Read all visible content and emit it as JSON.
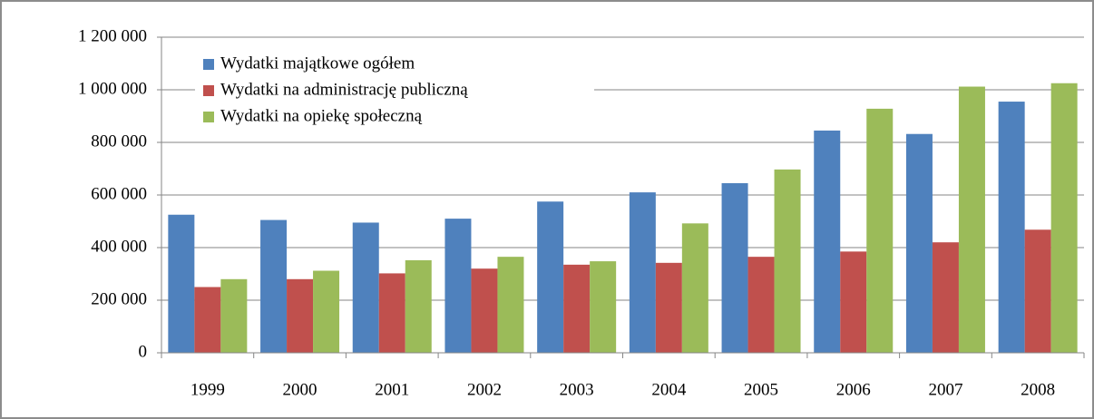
{
  "chart_data": {
    "type": "bar",
    "categories": [
      "1999",
      "2000",
      "2001",
      "2002",
      "2003",
      "2004",
      "2005",
      "2006",
      "2007",
      "2008"
    ],
    "series": [
      {
        "name": "Wydatki majątkowe ogółem",
        "color": "#4f81bd",
        "values": [
          525000,
          505000,
          495000,
          510000,
          575000,
          610000,
          645000,
          845000,
          832000,
          955000
        ]
      },
      {
        "name": "Wydatki na administrację publiczną",
        "color": "#c0504d",
        "values": [
          250000,
          280000,
          302000,
          320000,
          335000,
          342000,
          365000,
          385000,
          420000,
          468000
        ]
      },
      {
        "name": "Wydatki na opiekę społeczną",
        "color": "#9bbb59",
        "values": [
          280000,
          312000,
          352000,
          365000,
          348000,
          492000,
          697000,
          928000,
          1012000,
          1025000
        ]
      }
    ],
    "ylim": [
      0,
      1200000
    ],
    "yticks": [
      0,
      {
        "value": 200000,
        "label": "200 000"
      },
      {
        "value": 400000,
        "label": "400 000"
      },
      {
        "value": 600000,
        "label": "600 000"
      },
      {
        "value": 800000,
        "label": "800 000"
      },
      {
        "value": 1000000,
        "label": "1 000 000"
      },
      {
        "value": 1200000,
        "label": "1 200 000"
      }
    ],
    "grid": true,
    "legend": "upper-left"
  }
}
